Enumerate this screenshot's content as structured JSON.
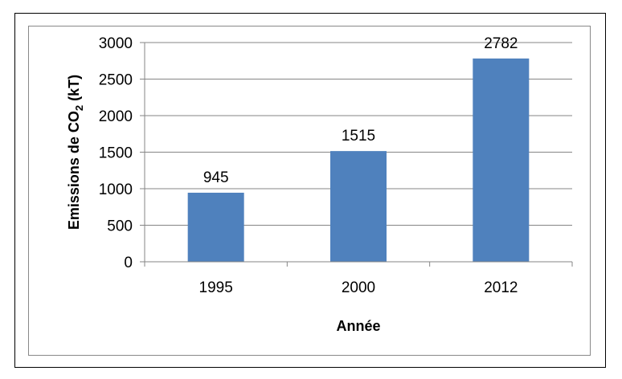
{
  "chart_data": {
    "type": "bar",
    "categories": [
      "1995",
      "2000",
      "2012"
    ],
    "values": [
      945,
      1515,
      2782
    ],
    "data_labels": [
      "945",
      "1515",
      "2782"
    ],
    "title": "",
    "xlabel": "Année",
    "ylabel": {
      "prefix": "Emissions de CO",
      "subscript": "2",
      "suffix": " (kT)"
    },
    "ylim": [
      0,
      3000
    ],
    "yticks": [
      0,
      500,
      1000,
      1500,
      2000,
      2500,
      3000
    ],
    "ytick_labels": [
      "0",
      "500",
      "1000",
      "1500",
      "2000",
      "2500",
      "3000"
    ],
    "grid": true,
    "legend": "none",
    "bar_color": "#4F81BD",
    "gridline_color": "#858585"
  }
}
